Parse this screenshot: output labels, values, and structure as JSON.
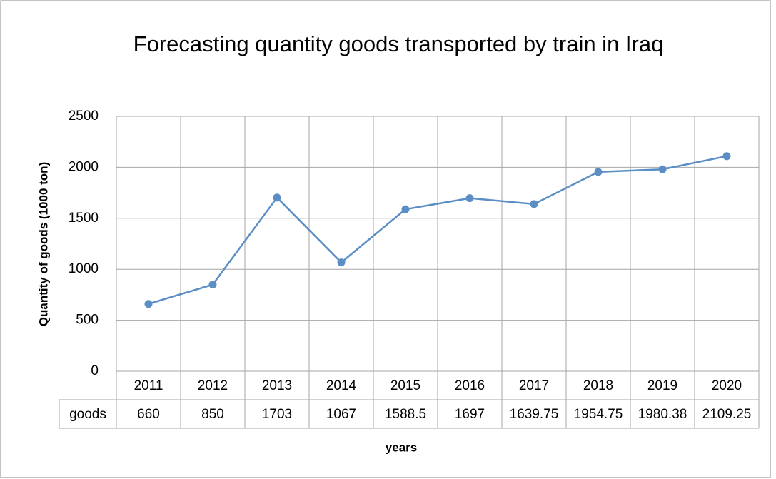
{
  "chart_data": {
    "type": "line",
    "title": "Forecasting quantity goods transported by train in Iraq",
    "x_label": "years",
    "y_label": "Quantity of goods (1000 ton)",
    "categories": [
      "2011",
      "2012",
      "2013",
      "2014",
      "2015",
      "2016",
      "2017",
      "2018",
      "2019",
      "2020"
    ],
    "series": [
      {
        "name": "goods",
        "color": "#5b8ec4",
        "values": [
          660,
          850,
          1703,
          1067,
          1588.5,
          1697,
          1639.75,
          1954.75,
          1980.38,
          2109.25
        ]
      }
    ],
    "ylim": [
      0,
      2500
    ],
    "yticks": [
      0,
      500,
      1000,
      1500,
      2000,
      2500
    ],
    "grid": true,
    "data_table": true
  }
}
